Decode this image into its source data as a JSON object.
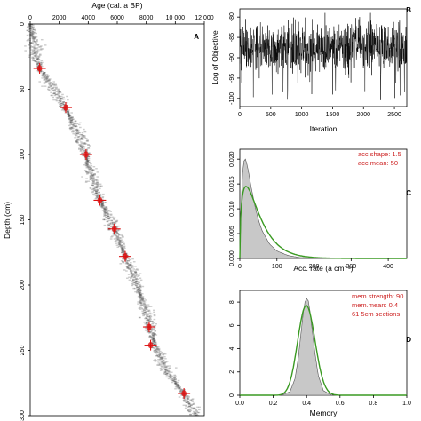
{
  "panels": {
    "A": "A",
    "B": "B",
    "C": "C",
    "D": "D"
  },
  "chart_data": [
    {
      "panel": "A",
      "type": "scatter",
      "title": "",
      "xlabel": "Age (cal. a BP)",
      "ylabel": "Depth (cm)",
      "xlim": [
        0,
        12000
      ],
      "ylim": [
        300,
        0
      ],
      "x_axis_position": "top",
      "xticks": [
        0,
        2000,
        4000,
        6000,
        8000,
        10000,
        12000
      ],
      "xtick_labels": [
        "0",
        "2000",
        "4000",
        "6000",
        "8000",
        "10 000",
        "12 000"
      ],
      "yticks": [
        0,
        50,
        100,
        150,
        200,
        250,
        300
      ],
      "ytick_labels": [
        "0",
        "50",
        "100",
        "150",
        "200",
        "250",
        "300"
      ],
      "age_model": {
        "depth": [
          0,
          5,
          10,
          20,
          30,
          35,
          45,
          55,
          65,
          75,
          85,
          100,
          112,
          125,
          135,
          148,
          157,
          165,
          178,
          190,
          205,
          218,
          232,
          242,
          258,
          270,
          283,
          295,
          300
        ],
        "age": [
          0,
          80,
          160,
          350,
          550,
          680,
          1300,
          1900,
          2450,
          2900,
          3350,
          3850,
          4150,
          4550,
          4850,
          5450,
          5800,
          6100,
          6550,
          7000,
          7500,
          7950,
          8250,
          8500,
          9050,
          9700,
          10600,
          11150,
          11450
        ]
      },
      "dates": [
        {
          "age": 650,
          "depth": 34
        },
        {
          "age": 2450,
          "depth": 64
        },
        {
          "age": 3850,
          "depth": 100
        },
        {
          "age": 4800,
          "depth": 135
        },
        {
          "age": 5800,
          "depth": 157
        },
        {
          "age": 6550,
          "depth": 178
        },
        {
          "age": 8200,
          "depth": 232
        },
        {
          "age": 8300,
          "depth": 246
        },
        {
          "age": 10600,
          "depth": 283
        }
      ],
      "colors": {
        "model": "#1a1a1a",
        "dates": "#dd1111"
      }
    },
    {
      "panel": "B",
      "type": "line",
      "title": "",
      "xlabel": "Iteration",
      "ylabel": "Log of Objective",
      "xlim": [
        0,
        2700
      ],
      "ylim": [
        -102,
        -78
      ],
      "xticks": [
        0,
        500,
        1000,
        1500,
        2000,
        2500
      ],
      "yticks": [
        -100,
        -95,
        -90,
        -85,
        -80
      ],
      "ytick_labels": [
        "-100",
        "-95",
        "-90",
        "-85",
        "-80"
      ],
      "series": [
        {
          "n_iterations": 2700,
          "mean": -87.5,
          "sd": 3.2,
          "min": -101,
          "max": -79
        }
      ],
      "colors": {
        "trace": "#000000"
      }
    },
    {
      "panel": "C",
      "type": "area",
      "title": "",
      "xlabel": "Acc. rate (a cm⁻¹)",
      "ylabel": "",
      "xlim": [
        0,
        450
      ],
      "ylim": [
        0,
        0.022
      ],
      "xticks": [
        0,
        100,
        200,
        300,
        400
      ],
      "yticks": [
        0,
        0.005,
        0.01,
        0.015,
        0.02
      ],
      "ytick_labels": [
        "0.000",
        "0.005",
        "0.010",
        "0.015",
        "0.020"
      ],
      "annotations": [
        "acc.shape:  1.5",
        "acc.mean:  50"
      ],
      "posterior": {
        "x": [
          0,
          5,
          10,
          15,
          20,
          25,
          30,
          40,
          50,
          60,
          80,
          100,
          130,
          160,
          200,
          250,
          300,
          450
        ],
        "y": [
          0,
          0.015,
          0.0195,
          0.02,
          0.0188,
          0.0168,
          0.0146,
          0.0108,
          0.0078,
          0.0056,
          0.0029,
          0.0015,
          0.0006,
          0.0002,
          5e-05,
          0,
          0,
          0
        ]
      },
      "prior": {
        "shape": 1.5,
        "mean": 50
      },
      "colors": {
        "posterior": "#c8c8c8",
        "prior": "#3a9a22"
      }
    },
    {
      "panel": "D",
      "type": "area",
      "title": "",
      "xlabel": "Memory",
      "ylabel": "",
      "xlim": [
        0,
        1
      ],
      "ylim": [
        0,
        9
      ],
      "xticks": [
        0.0,
        0.2,
        0.4,
        0.6,
        0.8,
        1.0
      ],
      "xtick_labels": [
        "0.0",
        "0.2",
        "0.4",
        "0.6",
        "0.8",
        "1.0"
      ],
      "yticks": [
        0,
        2,
        4,
        6,
        8
      ],
      "annotations": [
        "mem.strength: 90",
        "mem.mean: 0.4",
        "61 5cm sections"
      ],
      "posterior": {
        "x": [
          0.25,
          0.3,
          0.33,
          0.35,
          0.37,
          0.38,
          0.39,
          0.4,
          0.41,
          0.42,
          0.43,
          0.45,
          0.47,
          0.5,
          0.55
        ],
        "y": [
          0,
          0.3,
          1.4,
          3.2,
          5.8,
          7.1,
          8.0,
          8.3,
          8.1,
          7.2,
          6.0,
          3.6,
          1.7,
          0.4,
          0
        ]
      },
      "prior": {
        "strength": 90,
        "mean": 0.4
      },
      "colors": {
        "posterior": "#c8c8c8",
        "prior": "#3a9a22"
      }
    }
  ]
}
